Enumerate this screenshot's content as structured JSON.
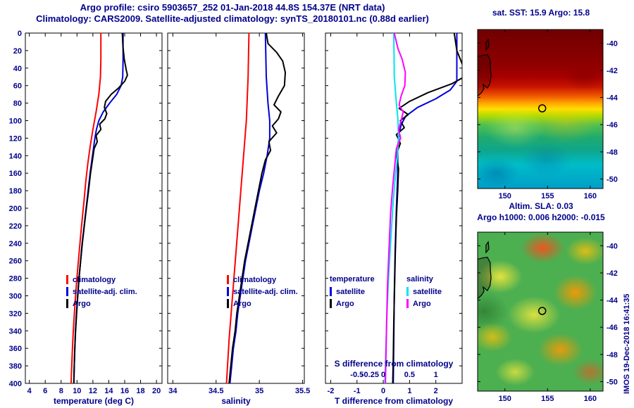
{
  "colors": {
    "axis_text": "#00008b",
    "background": "#ffffff",
    "climatology": "#ff0000",
    "satellite_adjusted": "#0000dd",
    "argo": "#000000",
    "salinity_satellite": "#00e5ee",
    "salinity_argo": "#ff00ff"
  },
  "header": {
    "line1": "Argo profile: csiro 5903657_252 01-Jan-2018 44.8S 154.37E (NRT data)",
    "line2": "Climatology: CARS2009. Satellite-adjusted climatology: synTS_20180101.nc (0.88d earlier)"
  },
  "watermark": "IMOS 19-Dec-2018 16:41:35",
  "chart_data": [
    {
      "type": "line",
      "title": "",
      "xlabel": "temperature (deg C)",
      "ylabel": "",
      "xlim": [
        3.5,
        20.7
      ],
      "ylim": [
        0,
        400
      ],
      "xticks": [
        4,
        6,
        8,
        10,
        12,
        14,
        16,
        18,
        20
      ],
      "ytick_step": 20,
      "ytick_labels": true,
      "legend": [
        "climatology",
        "satellite-adj. clim.",
        "Argo"
      ],
      "series": [
        {
          "name": "climatology",
          "color": "#ff0000",
          "points": [
            [
              0,
              13.0
            ],
            [
              30,
              13.0
            ],
            [
              50,
              12.95
            ],
            [
              70,
              12.75
            ],
            [
              90,
              12.4
            ],
            [
              110,
              12.0
            ],
            [
              130,
              11.65
            ],
            [
              150,
              11.35
            ],
            [
              170,
              11.1
            ],
            [
              190,
              10.9
            ],
            [
              210,
              10.68
            ],
            [
              230,
              10.47
            ],
            [
              250,
              10.27
            ],
            [
              270,
              10.08
            ],
            [
              290,
              9.9
            ],
            [
              310,
              9.74
            ],
            [
              330,
              9.6
            ],
            [
              350,
              9.48
            ],
            [
              370,
              9.38
            ],
            [
              400,
              9.25
            ]
          ]
        },
        {
          "name": "satellite-adj. clim.",
          "color": "#0000dd",
          "points": [
            [
              0,
              15.8
            ],
            [
              30,
              15.8
            ],
            [
              50,
              15.75
            ],
            [
              60,
              15.55
            ],
            [
              70,
              15.0
            ],
            [
              80,
              14.1
            ],
            [
              90,
              13.3
            ],
            [
              100,
              12.75
            ],
            [
              110,
              12.45
            ],
            [
              120,
              12.25
            ],
            [
              140,
              11.95
            ],
            [
              160,
              11.65
            ],
            [
              180,
              11.4
            ],
            [
              200,
              11.15
            ],
            [
              220,
              10.9
            ],
            [
              240,
              10.65
            ],
            [
              260,
              10.45
            ],
            [
              280,
              10.25
            ],
            [
              300,
              10.08
            ],
            [
              320,
              9.93
            ],
            [
              340,
              9.8
            ],
            [
              360,
              9.72
            ],
            [
              380,
              9.65
            ],
            [
              400,
              9.6
            ]
          ]
        },
        {
          "name": "Argo",
          "color": "#000000",
          "points": [
            [
              0,
              15.7
            ],
            [
              15,
              15.78
            ],
            [
              30,
              15.95
            ],
            [
              42,
              16.2
            ],
            [
              48,
              16.35
            ],
            [
              55,
              16.0
            ],
            [
              63,
              15.2
            ],
            [
              70,
              14.3
            ],
            [
              78,
              13.6
            ],
            [
              85,
              13.45
            ],
            [
              92,
              13.75
            ],
            [
              98,
              13.5
            ],
            [
              104,
              12.85
            ],
            [
              110,
              13.0
            ],
            [
              117,
              12.4
            ],
            [
              124,
              12.55
            ],
            [
              132,
              12.15
            ],
            [
              145,
              11.95
            ],
            [
              160,
              11.7
            ],
            [
              180,
              11.45
            ],
            [
              200,
              11.18
            ],
            [
              220,
              10.92
            ],
            [
              240,
              10.67
            ],
            [
              260,
              10.46
            ],
            [
              280,
              10.26
            ],
            [
              300,
              10.1
            ],
            [
              320,
              9.95
            ],
            [
              340,
              9.82
            ],
            [
              360,
              9.72
            ],
            [
              380,
              9.65
            ],
            [
              400,
              9.6
            ]
          ]
        }
      ]
    },
    {
      "type": "line",
      "title": "",
      "xlabel": "salinity",
      "ylabel": "",
      "xlim": [
        33.94,
        35.52
      ],
      "ylim": [
        0,
        400
      ],
      "xticks": [
        34,
        34.5,
        35,
        35.5
      ],
      "ytick_step": 20,
      "ytick_labels": false,
      "legend": [
        "climatology",
        "satellite-adj. clim.",
        "Argo"
      ],
      "series": [
        {
          "name": "climatology",
          "color": "#ff0000",
          "points": [
            [
              0,
              34.88
            ],
            [
              50,
              34.87
            ],
            [
              100,
              34.85
            ],
            [
              150,
              34.81
            ],
            [
              200,
              34.77
            ],
            [
              250,
              34.73
            ],
            [
              300,
              34.69
            ],
            [
              350,
              34.65
            ],
            [
              400,
              34.62
            ]
          ]
        },
        {
          "name": "satellite-adj. clim.",
          "color": "#0000dd",
          "points": [
            [
              0,
              35.07
            ],
            [
              50,
              35.08
            ],
            [
              80,
              35.1
            ],
            [
              100,
              35.12
            ],
            [
              120,
              35.12
            ],
            [
              140,
              35.09
            ],
            [
              160,
              35.05
            ],
            [
              180,
              35.0
            ],
            [
              200,
              34.96
            ],
            [
              220,
              34.92
            ],
            [
              240,
              34.88
            ],
            [
              260,
              34.84
            ],
            [
              280,
              34.81
            ],
            [
              300,
              34.78
            ],
            [
              320,
              34.75
            ],
            [
              340,
              34.73
            ],
            [
              360,
              34.7
            ],
            [
              380,
              34.68
            ],
            [
              400,
              34.66
            ]
          ]
        },
        {
          "name": "Argo",
          "color": "#000000",
          "points": [
            [
              0,
              35.08
            ],
            [
              12,
              35.1
            ],
            [
              22,
              35.2
            ],
            [
              32,
              35.27
            ],
            [
              45,
              35.3
            ],
            [
              60,
              35.29
            ],
            [
              72,
              35.22
            ],
            [
              82,
              35.17
            ],
            [
              90,
              35.25
            ],
            [
              98,
              35.22
            ],
            [
              106,
              35.15
            ],
            [
              114,
              35.2
            ],
            [
              124,
              35.11
            ],
            [
              134,
              35.13
            ],
            [
              145,
              35.07
            ],
            [
              160,
              35.03
            ],
            [
              180,
              34.99
            ],
            [
              200,
              34.95
            ],
            [
              220,
              34.91
            ],
            [
              240,
              34.87
            ],
            [
              260,
              34.83
            ],
            [
              280,
              34.8
            ],
            [
              300,
              34.77
            ],
            [
              320,
              34.74
            ],
            [
              340,
              34.72
            ],
            [
              360,
              34.69
            ],
            [
              380,
              34.67
            ],
            [
              400,
              34.65
            ]
          ]
        }
      ]
    },
    {
      "type": "line",
      "title": "",
      "xlabel": "T difference from climatology",
      "ylabel": "",
      "xlim": [
        -2.2,
        3.0
      ],
      "ylim": [
        0,
        400
      ],
      "xticks": [
        -2,
        -1,
        0,
        1,
        2
      ],
      "ytick_step": 20,
      "ytick_labels": false,
      "s_axis": {
        "label": "S difference from climatology",
        "scale": 2,
        "ticks": [
          -0.5,
          -0.25,
          0,
          0.5,
          1
        ]
      },
      "legend_groups": [
        {
          "title": "temperature",
          "items": [
            "satellite",
            "Argo"
          ]
        },
        {
          "title": "salinity",
          "items": [
            "satellite",
            "Argo"
          ]
        }
      ],
      "series": [
        {
          "name": "T satellite",
          "color": "#0000dd",
          "points": [
            [
              0,
              2.8
            ],
            [
              40,
              2.8
            ],
            [
              55,
              2.8
            ],
            [
              65,
              2.55
            ],
            [
              75,
              2.0
            ],
            [
              85,
              1.3
            ],
            [
              95,
              0.85
            ],
            [
              105,
              0.68
            ],
            [
              115,
              0.6
            ],
            [
              130,
              0.55
            ],
            [
              160,
              0.55
            ],
            [
              200,
              0.5
            ],
            [
              250,
              0.45
            ],
            [
              300,
              0.42
            ],
            [
              350,
              0.4
            ],
            [
              400,
              0.38
            ]
          ]
        },
        {
          "name": "T Argo",
          "color": "#000000",
          "points": [
            [
              0,
              2.7
            ],
            [
              20,
              2.8
            ],
            [
              35,
              3.0
            ],
            [
              48,
              3.2
            ],
            [
              58,
              2.6
            ],
            [
              68,
              1.7
            ],
            [
              78,
              1.0
            ],
            [
              86,
              0.6
            ],
            [
              93,
              0.95
            ],
            [
              100,
              0.65
            ],
            [
              108,
              0.8
            ],
            [
              116,
              0.5
            ],
            [
              126,
              0.65
            ],
            [
              138,
              0.5
            ],
            [
              155,
              0.58
            ],
            [
              180,
              0.55
            ],
            [
              210,
              0.5
            ],
            [
              250,
              0.46
            ],
            [
              290,
              0.43
            ],
            [
              330,
              0.4
            ],
            [
              370,
              0.38
            ],
            [
              400,
              0.36
            ]
          ]
        },
        {
          "name": "S satellite",
          "color": "#00e5ee",
          "x_scale": 2,
          "points": [
            [
              0,
              0.2
            ],
            [
              50,
              0.21
            ],
            [
              80,
              0.25
            ],
            [
              100,
              0.28
            ],
            [
              120,
              0.29
            ],
            [
              140,
              0.27
            ],
            [
              170,
              0.22
            ],
            [
              200,
              0.18
            ],
            [
              240,
              0.14
            ],
            [
              280,
              0.1
            ],
            [
              320,
              0.07
            ],
            [
              360,
              0.05
            ],
            [
              400,
              0.03
            ]
          ]
        },
        {
          "name": "S Argo",
          "color": "#ff00ff",
          "x_scale": 2,
          "points": [
            [
              0,
              0.21
            ],
            [
              18,
              0.28
            ],
            [
              30,
              0.36
            ],
            [
              45,
              0.42
            ],
            [
              60,
              0.41
            ],
            [
              72,
              0.34
            ],
            [
              82,
              0.3
            ],
            [
              90,
              0.38
            ],
            [
              100,
              0.34
            ],
            [
              110,
              0.29
            ],
            [
              120,
              0.33
            ],
            [
              132,
              0.25
            ],
            [
              150,
              0.22
            ],
            [
              175,
              0.18
            ],
            [
              205,
              0.14
            ],
            [
              245,
              0.11
            ],
            [
              290,
              0.08
            ],
            [
              340,
              0.06
            ],
            [
              400,
              0.04
            ]
          ]
        }
      ]
    }
  ],
  "maps": [
    {
      "title": "sat. SST: 15.9 Argo: 15.8",
      "lon_range": [
        146.8,
        161.5
      ],
      "lat_range": [
        -39.0,
        -50.7
      ],
      "lon_ticks": [
        150,
        155,
        160
      ],
      "lat_ticks": [
        -40,
        -42,
        -44,
        -46,
        -48,
        -50
      ],
      "marker": {
        "lon": 154.37,
        "lat": -44.8
      }
    },
    {
      "title": "Altim. SLA: 0.03",
      "subtitle": "Argo h1000: 0.006 h2000: -0.015",
      "lon_range": [
        146.8,
        161.5
      ],
      "lat_range": [
        -39.0,
        -50.7
      ],
      "lon_ticks": [
        150,
        155,
        160
      ],
      "lat_ticks": [
        -40,
        -42,
        -44,
        -46,
        -48,
        -50
      ],
      "marker": {
        "lon": 154.37,
        "lat": -44.8
      }
    }
  ],
  "coastline": [
    [
      [
        146.8,
        -43.9
      ],
      [
        147.25,
        -43.65
      ],
      [
        147.55,
        -43.35
      ],
      [
        147.45,
        -43.05
      ],
      [
        147.95,
        -43.3
      ],
      [
        148.25,
        -42.95
      ],
      [
        148.38,
        -42.35
      ],
      [
        148.3,
        -41.85
      ],
      [
        148.28,
        -41.25
      ],
      [
        147.95,
        -40.85
      ],
      [
        147.4,
        -40.9
      ],
      [
        146.8,
        -41.0
      ]
    ],
    [
      [
        147.78,
        -40.5
      ],
      [
        148.12,
        -40.25
      ],
      [
        148.05,
        -39.72
      ],
      [
        147.78,
        -39.95
      ]
    ]
  ]
}
